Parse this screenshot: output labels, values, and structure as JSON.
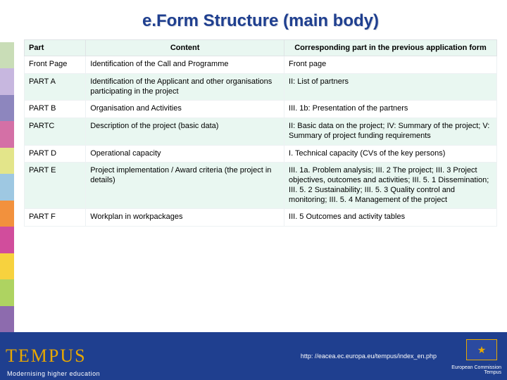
{
  "title": "e.Form Structure (main body)",
  "colorStrip": [
    "#c9ddb7",
    "#c7b7df",
    "#8d86be",
    "#d470a6",
    "#e3e58a",
    "#9ec8e2",
    "#f2913d",
    "#d14d9c",
    "#f7d23e",
    "#aed361",
    "#8d6bae"
  ],
  "table": {
    "headers": [
      "Part",
      "Content",
      "Corresponding part in the previous application form"
    ],
    "rows": [
      {
        "zebra": false,
        "cells": [
          "Front Page",
          "Identification of the Call and Programme",
          "Front page"
        ]
      },
      {
        "zebra": true,
        "cells": [
          "PART A",
          "Identification of the Applicant and other organisations participating in the project",
          "II: List of partners"
        ]
      },
      {
        "zebra": false,
        "cells": [
          "PART B",
          "Organisation and Activities",
          "III. 1b:   Presentation of the partners"
        ]
      },
      {
        "zebra": true,
        "cells": [
          "PARTC",
          "Description of the project (basic data)",
          "II: Basic data on the project; IV: Summary of the project; V: Summary of project funding requirements"
        ]
      },
      {
        "zebra": false,
        "cells": [
          "PART D",
          "Operational capacity",
          "I. Technical capacity (CVs of the key persons)"
        ]
      },
      {
        "zebra": true,
        "cells": [
          "PART E",
          "Project implementation / Award criteria (the project in details)",
          "III. 1a. Problem analysis; III. 2 The project; III. 3 Project objectives, outcomes and activities; III. 5. 1 Dissemination; III. 5. 2 Sustainability; III. 5. 3 Quality control and monitoring; III. 5. 4 Management of the project"
        ]
      },
      {
        "zebra": false,
        "cells": [
          "PART F",
          "Workplan in workpackages",
          "III. 5 Outcomes and activity tables"
        ]
      }
    ]
  },
  "footer": {
    "logo": "TEMPUS",
    "tagline": "Modernising higher education",
    "url": "http: //eacea.ec.europa.eu/tempus/index_en.php",
    "ec1": "European Commission",
    "ec2": "Tempus"
  }
}
